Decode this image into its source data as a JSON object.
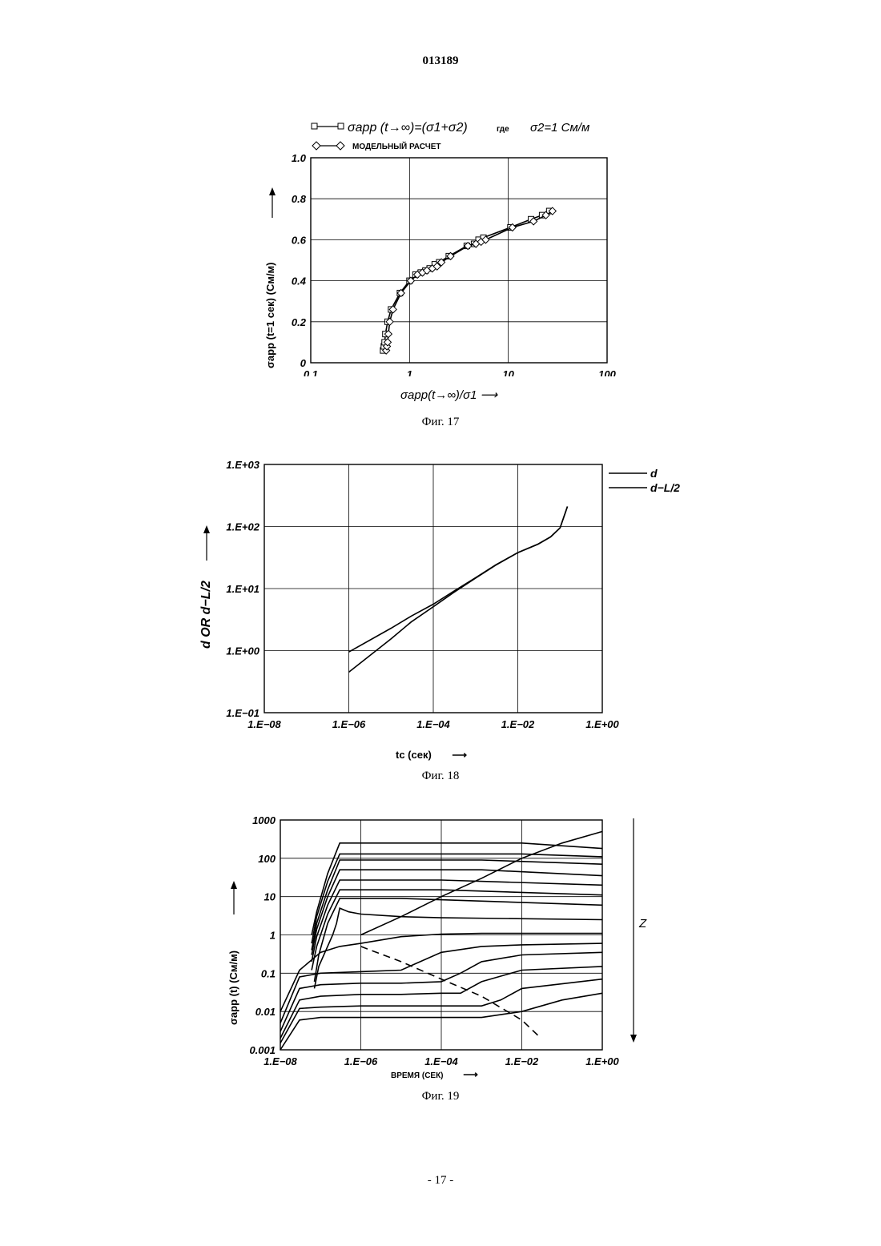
{
  "header": {
    "page_number": "013189"
  },
  "footer": {
    "page_label": "- 17 -"
  },
  "fig17": {
    "caption": "Фиг. 17",
    "legend": [
      {
        "label": "σapp  (t→∞)=(σ1+σ2)",
        "suffix": "где",
        "extra": "σ2=1 См/м",
        "marker": "square"
      },
      {
        "label": "МОДЕЛЬНЫЙ РАСЧЕТ",
        "marker": "diamond"
      }
    ],
    "ylabel": "σapp (t=1 сек) (См/м)",
    "xlabel": "σapp(t→∞)/σ1",
    "chart_data": {
      "type": "line",
      "x_scale": "log",
      "xlim": [
        0.1,
        100
      ],
      "ylim": [
        0,
        1.0
      ],
      "x_ticks": [
        "0.1",
        "1",
        "10",
        "100"
      ],
      "y_ticks": [
        "0",
        "0.2",
        "0.4",
        "0.6",
        "0.8",
        "1.0"
      ],
      "series": [
        {
          "marker": "square",
          "x": [
            0.54,
            0.55,
            0.56,
            0.57,
            0.6,
            0.65,
            0.8,
            1.0,
            1.15,
            1.3,
            1.45,
            1.6,
            1.8,
            2.0,
            2.5,
            3.8,
            4.5,
            5.0,
            5.6,
            10.5,
            17,
            22,
            26
          ],
          "y": [
            0.06,
            0.08,
            0.1,
            0.14,
            0.2,
            0.26,
            0.34,
            0.4,
            0.43,
            0.44,
            0.45,
            0.46,
            0.48,
            0.49,
            0.52,
            0.57,
            0.58,
            0.6,
            0.61,
            0.66,
            0.7,
            0.72,
            0.74
          ]
        },
        {
          "marker": "diamond",
          "x": [
            0.58,
            0.59,
            0.6,
            0.61,
            0.63,
            0.68,
            0.82,
            1.03,
            1.2,
            1.35,
            1.5,
            1.7,
            1.9,
            2.1,
            2.6,
            3.9,
            4.7,
            5.3,
            5.9,
            11,
            18,
            24,
            28
          ],
          "y": [
            0.06,
            0.08,
            0.1,
            0.14,
            0.2,
            0.26,
            0.34,
            0.4,
            0.43,
            0.44,
            0.45,
            0.46,
            0.47,
            0.49,
            0.52,
            0.57,
            0.58,
            0.59,
            0.6,
            0.66,
            0.69,
            0.72,
            0.74
          ]
        }
      ]
    }
  },
  "fig18": {
    "caption": "Фиг. 18",
    "legend": [
      "d",
      "d−L/2"
    ],
    "ylabel": "d OR d−L/2",
    "xlabel": "tc (сек)",
    "chart_data": {
      "type": "line",
      "x_scale": "log",
      "y_scale": "log",
      "xlim": [
        1e-08,
        1
      ],
      "ylim": [
        0.1,
        1000
      ],
      "x_ticks": [
        "1.E−08",
        "1.E−06",
        "1.E−04",
        "1.E−02",
        "1.E+00"
      ],
      "y_ticks": [
        "1.E−01",
        "1.E+00",
        "1.E+01",
        "1.E+02",
        "1.E+03"
      ],
      "series": [
        {
          "name": "d",
          "x": [
            1e-06,
            1e-05,
            3e-05,
            0.0001,
            0.0003,
            0.001,
            0.003,
            0.01,
            0.03,
            0.06,
            0.1,
            0.15
          ],
          "y": [
            0.95,
            2.3,
            3.6,
            5.6,
            9.0,
            15,
            24,
            38,
            52,
            68,
            95,
            210
          ]
        },
        {
          "name": "d−L/2",
          "x": [
            1e-06,
            1e-05,
            3e-05,
            0.0001,
            0.0003,
            0.001,
            0.003,
            0.01,
            0.03,
            0.06,
            0.1,
            0.15
          ],
          "y": [
            0.45,
            1.55,
            2.9,
            5.1,
            8.6,
            14.7,
            23.8,
            37.8,
            51.8,
            67.9,
            95,
            210
          ]
        }
      ]
    }
  },
  "fig19": {
    "caption": "Фиг. 19",
    "ylabel": "σapp (t) (См/м)",
    "xlabel": "ВРЕМЯ (СЕК)",
    "z_label": "Z",
    "chart_data": {
      "type": "line",
      "x_scale": "log",
      "y_scale": "log",
      "xlim": [
        1e-08,
        1
      ],
      "ylim": [
        0.001,
        1000
      ],
      "x_ticks": [
        "1.E−08",
        "1.E−06",
        "1.E−04",
        "1.E−02",
        "1.E+00"
      ],
      "y_ticks": [
        "0.001",
        "0.01",
        "0.1",
        "1",
        "10",
        "100",
        "1000"
      ],
      "series": [
        {
          "x": [
            6e-08,
            8e-08,
            1.5e-07,
            3e-07,
            0.01,
            1
          ],
          "y": [
            1.0,
            4,
            40,
            250,
            250,
            180
          ]
        },
        {
          "x": [
            6e-08,
            8e-08,
            1.5e-07,
            3e-07,
            0.01,
            1
          ],
          "y": [
            0.6,
            3,
            25,
            130,
            130,
            110
          ]
        },
        {
          "x": [
            6e-08,
            8e-08,
            1.5e-07,
            3e-07,
            0.001,
            1
          ],
          "y": [
            0.4,
            2,
            15,
            90,
            90,
            70
          ]
        },
        {
          "x": [
            6e-08,
            8e-08,
            1.5e-07,
            3e-07,
            0.001,
            1
          ],
          "y": [
            0.3,
            1.4,
            10,
            50,
            50,
            35
          ]
        },
        {
          "x": [
            6e-08,
            8e-08,
            1.5e-07,
            3e-07,
            0.0001,
            1
          ],
          "y": [
            0.2,
            0.9,
            6,
            27,
            27,
            20
          ]
        },
        {
          "x": [
            6e-08,
            8e-08,
            1.5e-07,
            3e-07,
            0.0001,
            1
          ],
          "y": [
            0.12,
            0.5,
            3.5,
            15,
            15,
            11
          ]
        },
        {
          "x": [
            7e-08,
            9e-08,
            1.5e-07,
            3e-07,
            1e-05,
            1
          ],
          "y": [
            0.06,
            0.3,
            2,
            9,
            9,
            6
          ]
        },
        {
          "x": [
            7e-08,
            9e-08,
            2e-07,
            2.5e-07,
            3e-07,
            5e-07,
            1e-06,
            1e-05,
            0.0001,
            1
          ],
          "y": [
            0.04,
            0.15,
            1.0,
            2.0,
            5,
            4,
            3.5,
            3,
            2.8,
            2.5
          ]
        },
        {
          "x": [
            1e-08,
            3e-08,
            1e-07,
            3e-07,
            1e-06,
            1e-05,
            0.0001,
            0.001,
            1
          ],
          "y": [
            0.01,
            0.12,
            0.35,
            0.5,
            0.6,
            0.9,
            1.05,
            1.1,
            1.1
          ]
        },
        {
          "x": [
            1e-08,
            3e-08,
            1e-07,
            1e-06,
            1e-05,
            3e-05,
            0.0001,
            0.001,
            0.01,
            1
          ],
          "y": [
            0.005,
            0.08,
            0.1,
            0.11,
            0.12,
            0.2,
            0.35,
            0.5,
            0.55,
            0.6
          ]
        },
        {
          "x": [
            1e-08,
            3e-08,
            1e-07,
            1e-06,
            1e-05,
            0.0001,
            0.0003,
            0.001,
            0.01,
            1
          ],
          "y": [
            0.003,
            0.04,
            0.05,
            0.055,
            0.055,
            0.06,
            0.1,
            0.2,
            0.3,
            0.35
          ]
        },
        {
          "x": [
            1e-08,
            3e-08,
            1e-07,
            1e-06,
            1e-05,
            0.0001,
            0.0003,
            0.001,
            0.01,
            1
          ],
          "y": [
            0.002,
            0.02,
            0.025,
            0.028,
            0.028,
            0.03,
            0.03,
            0.06,
            0.12,
            0.15
          ]
        },
        {
          "x": [
            1e-08,
            3e-08,
            1e-07,
            1e-06,
            1e-05,
            0.0001,
            0.001,
            0.003,
            0.01,
            1
          ],
          "y": [
            0.0015,
            0.012,
            0.013,
            0.014,
            0.014,
            0.014,
            0.014,
            0.02,
            0.04,
            0.07
          ]
        },
        {
          "x": [
            1e-08,
            3e-08,
            1e-07,
            1e-06,
            1e-05,
            0.0001,
            0.001,
            0.01,
            0.1,
            1
          ],
          "y": [
            0.001,
            0.006,
            0.007,
            0.007,
            0.007,
            0.007,
            0.007,
            0.01,
            0.02,
            0.03
          ]
        },
        {
          "style": "trend",
          "x": [
            1e-06,
            1e-05,
            0.0001,
            0.001,
            0.01,
            0.1,
            1
          ],
          "y": [
            1.0,
            3,
            10,
            30,
            100,
            250,
            500
          ]
        },
        {
          "style": "dashed",
          "x": [
            1e-06,
            1e-05,
            0.0001,
            0.001,
            0.01,
            0.03
          ],
          "y": [
            0.5,
            0.2,
            0.07,
            0.025,
            0.006,
            0.002
          ]
        }
      ]
    }
  }
}
